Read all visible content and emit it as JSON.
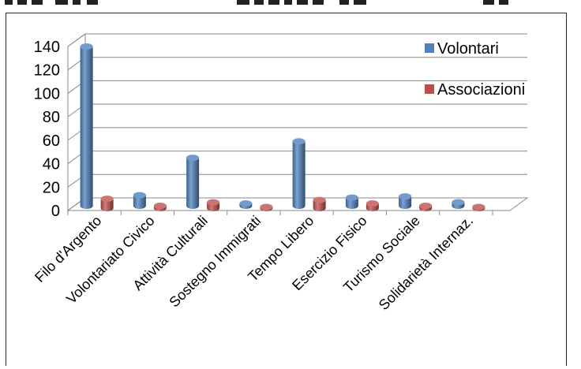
{
  "chart_data": {
    "type": "bar",
    "style": "3d-cylinder",
    "categories": [
      "Filo d'Argento",
      "Volontariato Civico",
      "Attività Culturali",
      "Sostegno Immigrati",
      "Tempo Libero",
      "Esercizio Fisico",
      "Turismo Sociale",
      "Solidarietà Internaz."
    ],
    "series": [
      {
        "name": "Volontari",
        "color": "#4f81bd",
        "values": [
          136,
          9,
          41,
          2,
          55,
          7,
          8,
          3
        ]
      },
      {
        "name": "Associazioni",
        "color": "#c0504d",
        "values": [
          8,
          2,
          5,
          1,
          7,
          4,
          2,
          1
        ]
      }
    ],
    "title": "",
    "xlabel": "",
    "ylabel": "",
    "ylim": [
      0,
      140
    ],
    "yticks": [
      0,
      20,
      40,
      60,
      80,
      100,
      120,
      140
    ],
    "grid": true,
    "legend_position": "top-right",
    "category_label_rotation": "45 degrees"
  }
}
